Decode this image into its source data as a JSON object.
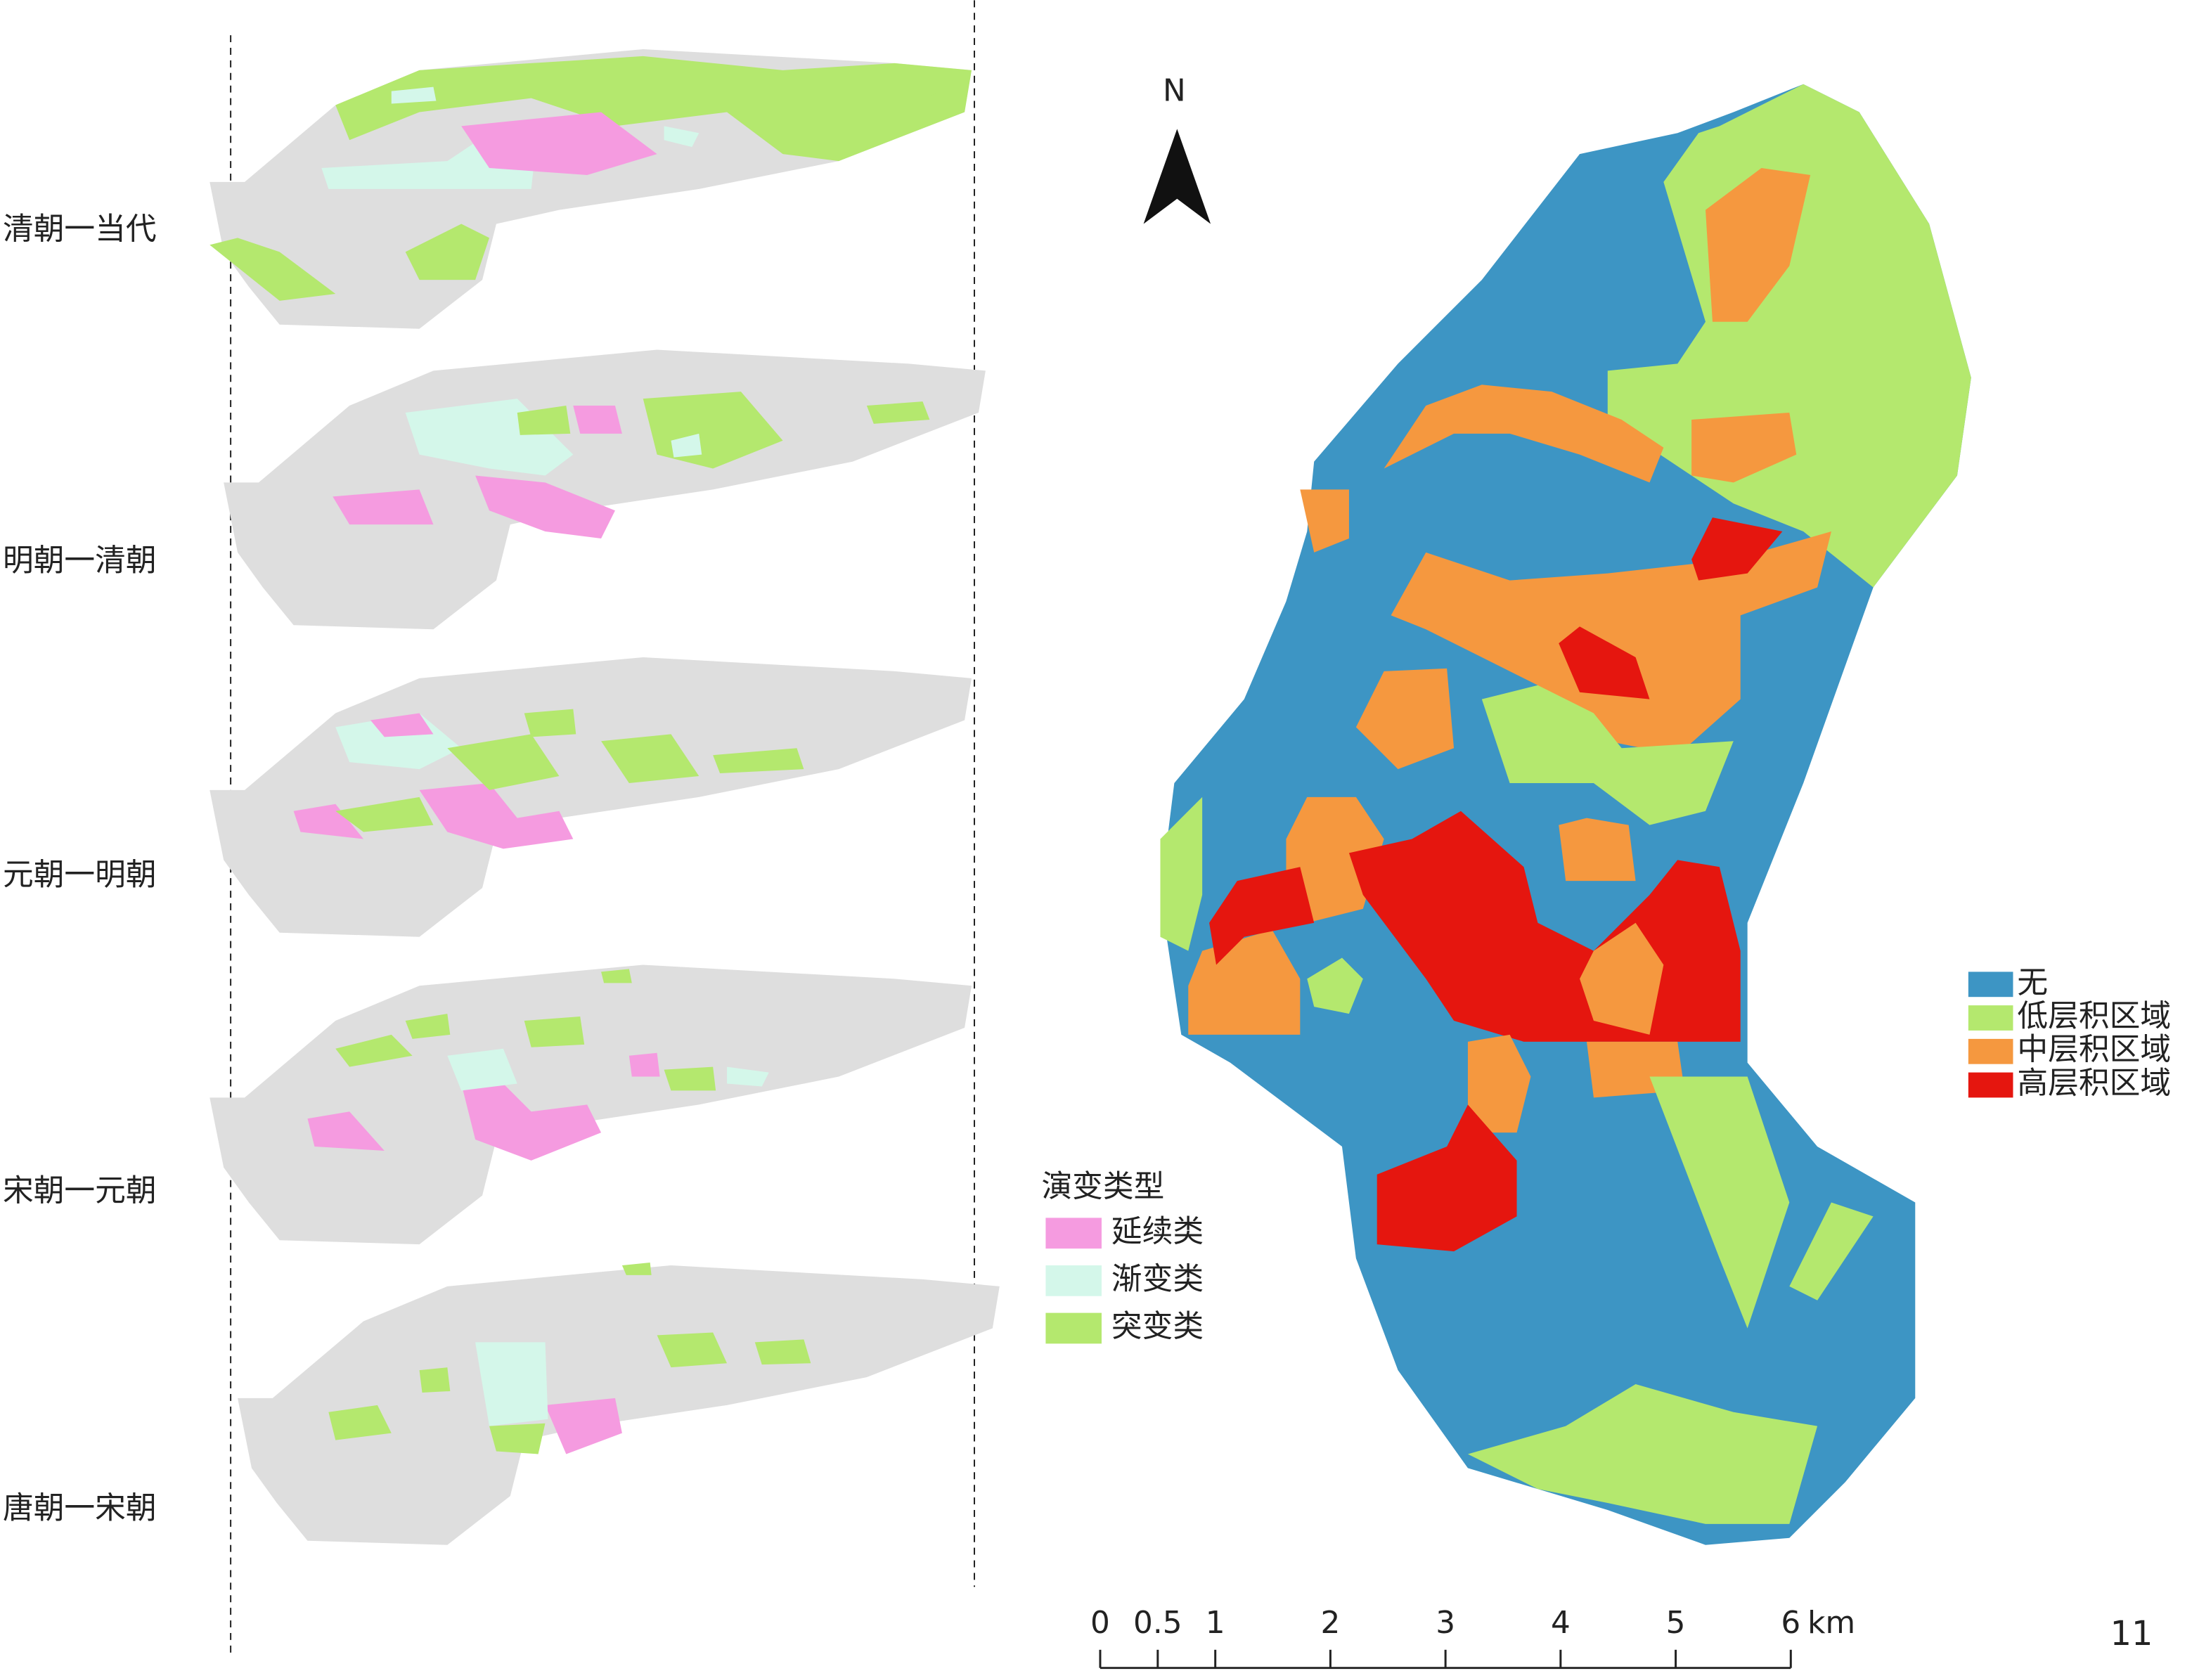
{
  "periods": [
    "清朝一当代",
    "明朝一清朝",
    "元朝一明朝",
    "宋朝一元朝",
    "唐朝一宋朝"
  ],
  "evolution_legend": {
    "title": "演变类型",
    "items": [
      {
        "label": "延续类",
        "color": "#f59be0"
      },
      {
        "label": "渐变类",
        "color": "#d4f7ea"
      },
      {
        "label": "突变类",
        "color": "#b4e86e"
      }
    ]
  },
  "accumulation_legend": {
    "items": [
      {
        "label": "无",
        "color": "#3d95c4"
      },
      {
        "label": "低层积区域",
        "color": "#b4e86e"
      },
      {
        "label": "中层积区域",
        "color": "#f5983f"
      },
      {
        "label": "高层积区域",
        "color": "#e5160f"
      }
    ]
  },
  "north_label": "N",
  "scale_bar": {
    "ticks": [
      0,
      0.5,
      1,
      2,
      3,
      4,
      5,
      6
    ],
    "unit": "km"
  },
  "page_number": "11"
}
